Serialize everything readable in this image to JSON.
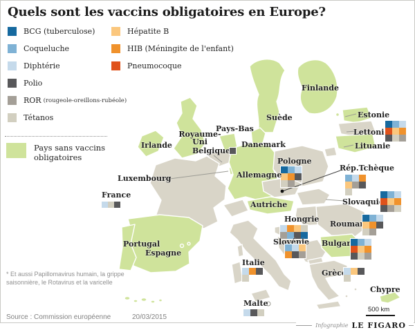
{
  "title": "Quels sont les vaccins obligatoires en Europe?",
  "legend": {
    "vaccines": [
      {
        "id": "bcg",
        "label": "BCG (tuberculose)",
        "color": "#16699f"
      },
      {
        "id": "coqueluche",
        "label": "Coqueluche",
        "color": "#7fb2d5"
      },
      {
        "id": "diphterie",
        "label": "Diphtérie",
        "color": "#c5daeb"
      },
      {
        "id": "polio",
        "label": "Polio",
        "color": "#58585a"
      },
      {
        "id": "ror",
        "label": "ROR",
        "sublabel": "(rougeole-oreillons-rubéole)",
        "color": "#a49f97"
      },
      {
        "id": "tetanos",
        "label": "Tétanos",
        "color": "#d2cfc0"
      },
      {
        "id": "hepatite_b",
        "label": "Hépatite B",
        "color": "#fbc77d"
      },
      {
        "id": "hib",
        "label": "HIB (Méningite de l'enfant)",
        "color": "#f0922c"
      },
      {
        "id": "pneumocoque",
        "label": "Pneumocoque",
        "color": "#e0521b"
      }
    ],
    "no_mandatory": {
      "label": "Pays sans vaccins obligatoires",
      "color": "#cfe39b"
    }
  },
  "map_colors": {
    "no_mandatory": "#cfe39b",
    "mandatory": "#d9d5c8"
  },
  "map": {
    "countries": [
      {
        "id": "irlande",
        "label": "Irlande"
      },
      {
        "id": "royaume-uni",
        "label": "Royaume-Uni"
      },
      {
        "id": "pays-bas",
        "label": "Pays-Bas"
      },
      {
        "id": "belgique",
        "label": "Belgique",
        "grid": [
          [
            "polio"
          ]
        ]
      },
      {
        "id": "danemark",
        "label": "Danemark"
      },
      {
        "id": "suede",
        "label": "Suède"
      },
      {
        "id": "finlande",
        "label": "Finlande"
      },
      {
        "id": "estonie",
        "label": "Estonie"
      },
      {
        "id": "lettonie",
        "label": "Lettonie*",
        "grid": [
          [
            "bcg",
            "coqueluche",
            "diphterie"
          ],
          [
            "pneumocoque",
            "hepatite_b",
            "hib"
          ],
          [
            "polio",
            "tetanos",
            "ror"
          ]
        ]
      },
      {
        "id": "lituanie",
        "label": "Lituanie"
      },
      {
        "id": "pologne",
        "label": "Pologne",
        "grid": [
          [
            "bcg",
            "coqueluche",
            "diphterie"
          ],
          [
            "hepatite_b",
            "hib",
            "polio"
          ],
          [
            "tetanos",
            "ror"
          ]
        ]
      },
      {
        "id": "rep-tcheque",
        "label": "Rép.Tchèque",
        "grid": [
          [
            "coqueluche",
            "diphterie",
            "hib"
          ],
          [
            "hepatite_b",
            "ror",
            "polio"
          ],
          [
            "tetanos"
          ]
        ]
      },
      {
        "id": "allemagne",
        "label": "Allemagne"
      },
      {
        "id": "luxembourg",
        "label": "Luxembourg"
      },
      {
        "id": "france",
        "label": "France",
        "grid": [
          [
            "diphterie",
            "tetanos",
            "polio"
          ]
        ]
      },
      {
        "id": "autriche",
        "label": "Autriche"
      },
      {
        "id": "slovaquie",
        "label": "Slovaquie",
        "grid": [
          [
            "bcg",
            "coqueluche",
            "diphterie"
          ],
          [
            "pneumocoque",
            "hepatite_b",
            "hib"
          ],
          [
            "polio",
            "ror",
            "tetanos"
          ]
        ]
      },
      {
        "id": "hongrie",
        "label": "Hongrie",
        "grid": [
          [
            "diphterie",
            "hib",
            "hepatite_b",
            "tetanos"
          ],
          [
            "ror",
            "coqueluche",
            "polio",
            "bcg"
          ]
        ]
      },
      {
        "id": "roumanie",
        "label": "Roumanie",
        "grid": [
          [
            "bcg",
            "coqueluche",
            "diphterie"
          ],
          [
            "hepatite_b",
            "hib",
            "polio"
          ],
          [
            "tetanos",
            "ror"
          ]
        ]
      },
      {
        "id": "slovenie",
        "label": "Slovénie",
        "grid": [
          [
            "coqueluche",
            "diphterie",
            "hepatite_b"
          ],
          [
            "hib",
            "polio",
            "ror"
          ]
        ]
      },
      {
        "id": "bulgarie",
        "label": "Bulgarie",
        "grid": [
          [
            "bcg",
            "coqueluche",
            "diphterie"
          ],
          [
            "pneumocoque",
            "hepatite_b",
            "hib"
          ],
          [
            "polio",
            "tetanos",
            "ror"
          ]
        ]
      },
      {
        "id": "portugal",
        "label": "Portugal"
      },
      {
        "id": "espagne",
        "label": "Espagne"
      },
      {
        "id": "italie",
        "label": "Italie",
        "grid": [
          [
            "diphterie",
            "hib",
            "polio"
          ],
          [
            "tetanos"
          ]
        ]
      },
      {
        "id": "grece",
        "label": "Grèce",
        "grid": [
          [
            "diphterie",
            "hepatite_b",
            "polio"
          ],
          [
            "tetanos"
          ]
        ]
      },
      {
        "id": "malte",
        "label": "Malte",
        "grid": [
          [
            "diphterie",
            "polio",
            "tetanos"
          ]
        ]
      },
      {
        "id": "chypre",
        "label": "Chypre"
      }
    ]
  },
  "footnote": "* Et aussi Papillomavirus humain, la grippe saisonnière, le Rotavirus et la varicelle",
  "source": "Source : Commission européenne",
  "date": "20/03/2015",
  "scale_label": "500 km",
  "credit": {
    "prefix": "Infographie",
    "brand": "LE FIGARO"
  }
}
